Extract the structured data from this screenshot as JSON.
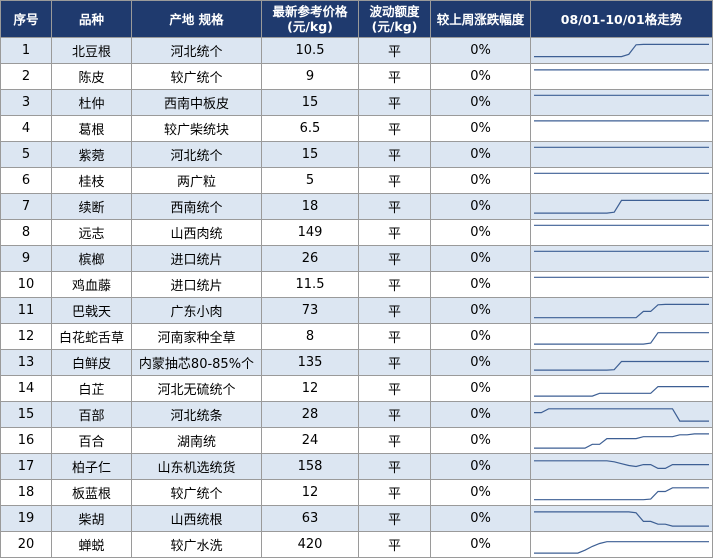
{
  "header": {
    "index": "序号",
    "variety": "品种",
    "origin_spec": "产地 规格",
    "price_line1": "最新参考价格",
    "price_line2": "(元/kg)",
    "change_line1": "波动额度",
    "change_line2": "(元/kg)",
    "weekly_pct": "较上周涨跌幅度",
    "trend": "08/01-10/01格走势"
  },
  "colors": {
    "header_bg": "#1f3a6e",
    "alt_row_bg": "#dce6f2",
    "trend_line": "#3d5f94"
  },
  "rows": [
    {
      "index": "1",
      "variety": "北豆根",
      "spec": "河北统个",
      "price": "10.5",
      "change": "平",
      "pct": "0%",
      "trend": [
        0.18,
        0.18,
        0.18,
        0.18,
        0.18,
        0.18,
        0.18,
        0.18,
        0.18,
        0.18,
        0.18,
        0.18,
        0.18,
        0.3,
        0.8,
        0.82,
        0.82,
        0.82,
        0.82,
        0.82,
        0.82,
        0.82,
        0.82,
        0.82,
        0.82
      ]
    },
    {
      "index": "2",
      "variety": "陈皮",
      "spec": "较广统个",
      "price": "9",
      "change": "平",
      "pct": "0%",
      "trend": [
        0.85,
        0.85,
        0.85,
        0.85,
        0.85,
        0.85,
        0.85,
        0.85,
        0.85,
        0.85,
        0.85,
        0.85,
        0.85,
        0.85,
        0.85,
        0.85,
        0.85,
        0.85,
        0.85,
        0.85,
        0.85,
        0.85,
        0.85,
        0.85,
        0.85
      ]
    },
    {
      "index": "3",
      "variety": "杜仲",
      "spec": "西南中板皮",
      "price": "15",
      "change": "平",
      "pct": "0%",
      "trend": [
        0.88,
        0.88,
        0.88,
        0.88,
        0.88,
        0.88,
        0.88,
        0.88,
        0.88,
        0.88,
        0.88,
        0.88,
        0.88,
        0.88,
        0.88,
        0.88,
        0.88,
        0.88,
        0.88,
        0.88,
        0.88,
        0.88,
        0.88,
        0.88,
        0.88
      ]
    },
    {
      "index": "4",
      "variety": "葛根",
      "spec": "较广柴统块",
      "price": "6.5",
      "change": "平",
      "pct": "0%",
      "trend": [
        0.9,
        0.9,
        0.9,
        0.9,
        0.9,
        0.9,
        0.9,
        0.9,
        0.9,
        0.9,
        0.9,
        0.9,
        0.9,
        0.9,
        0.9,
        0.9,
        0.9,
        0.9,
        0.9,
        0.9,
        0.9,
        0.9,
        0.9,
        0.9,
        0.9
      ]
    },
    {
      "index": "5",
      "variety": "紫菀",
      "spec": "河北统个",
      "price": "15",
      "change": "平",
      "pct": "0%",
      "trend": [
        0.88,
        0.88,
        0.88,
        0.88,
        0.88,
        0.88,
        0.88,
        0.88,
        0.88,
        0.88,
        0.88,
        0.88,
        0.88,
        0.88,
        0.88,
        0.88,
        0.88,
        0.88,
        0.88,
        0.88,
        0.88,
        0.88,
        0.88,
        0.88,
        0.88
      ]
    },
    {
      "index": "6",
      "variety": "桂枝",
      "spec": "两广粒",
      "price": "5",
      "change": "平",
      "pct": "0%",
      "trend": [
        0.88,
        0.88,
        0.88,
        0.88,
        0.88,
        0.88,
        0.88,
        0.88,
        0.88,
        0.88,
        0.88,
        0.88,
        0.88,
        0.88,
        0.88,
        0.88,
        0.88,
        0.88,
        0.88,
        0.88,
        0.88,
        0.88,
        0.88,
        0.88,
        0.88
      ]
    },
    {
      "index": "7",
      "variety": "续断",
      "spec": "西南统个",
      "price": "18",
      "change": "平",
      "pct": "0%",
      "trend": [
        0.15,
        0.15,
        0.15,
        0.15,
        0.15,
        0.15,
        0.15,
        0.15,
        0.15,
        0.15,
        0.15,
        0.2,
        0.82,
        0.82,
        0.82,
        0.82,
        0.82,
        0.82,
        0.82,
        0.82,
        0.82,
        0.82,
        0.82,
        0.82,
        0.82
      ]
    },
    {
      "index": "8",
      "variety": "远志",
      "spec": "山西肉统",
      "price": "149",
      "change": "平",
      "pct": "0%",
      "trend": [
        0.88,
        0.88,
        0.88,
        0.88,
        0.88,
        0.88,
        0.88,
        0.88,
        0.88,
        0.88,
        0.88,
        0.88,
        0.88,
        0.88,
        0.88,
        0.88,
        0.88,
        0.88,
        0.88,
        0.88,
        0.88,
        0.88,
        0.88,
        0.88,
        0.88
      ]
    },
    {
      "index": "9",
      "variety": "槟榔",
      "spec": "进口统片",
      "price": "26",
      "change": "平",
      "pct": "0%",
      "trend": [
        0.88,
        0.88,
        0.88,
        0.88,
        0.88,
        0.88,
        0.88,
        0.88,
        0.88,
        0.88,
        0.88,
        0.88,
        0.88,
        0.88,
        0.88,
        0.88,
        0.88,
        0.88,
        0.88,
        0.88,
        0.88,
        0.88,
        0.88,
        0.88,
        0.88
      ]
    },
    {
      "index": "10",
      "variety": "鸡血藤",
      "spec": "进口统片",
      "price": "11.5",
      "change": "平",
      "pct": "0%",
      "trend": [
        0.88,
        0.88,
        0.88,
        0.88,
        0.88,
        0.88,
        0.88,
        0.88,
        0.88,
        0.88,
        0.88,
        0.88,
        0.88,
        0.88,
        0.88,
        0.88,
        0.88,
        0.88,
        0.88,
        0.88,
        0.88,
        0.88,
        0.88,
        0.88,
        0.88
      ]
    },
    {
      "index": "11",
      "variety": "巴戟天",
      "spec": "广东小肉",
      "price": "73",
      "change": "平",
      "pct": "0%",
      "trend": [
        0.12,
        0.12,
        0.12,
        0.12,
        0.12,
        0.12,
        0.12,
        0.12,
        0.12,
        0.12,
        0.12,
        0.12,
        0.12,
        0.12,
        0.12,
        0.45,
        0.45,
        0.8,
        0.82,
        0.82,
        0.82,
        0.82,
        0.82,
        0.82,
        0.82
      ]
    },
    {
      "index": "12",
      "variety": "白花蛇舌草",
      "spec": "河南家种全草",
      "price": "8",
      "change": "平",
      "pct": "0%",
      "trend": [
        0.1,
        0.1,
        0.1,
        0.1,
        0.1,
        0.1,
        0.1,
        0.1,
        0.1,
        0.1,
        0.1,
        0.1,
        0.1,
        0.1,
        0.1,
        0.1,
        0.15,
        0.7,
        0.7,
        0.7,
        0.7,
        0.7,
        0.7,
        0.7,
        0.7
      ]
    },
    {
      "index": "13",
      "variety": "白鲜皮",
      "spec": "内蒙抽芯80-85%个",
      "price": "135",
      "change": "平",
      "pct": "0%",
      "trend": [
        0.1,
        0.1,
        0.1,
        0.1,
        0.1,
        0.1,
        0.1,
        0.1,
        0.1,
        0.1,
        0.1,
        0.12,
        0.55,
        0.55,
        0.55,
        0.55,
        0.55,
        0.55,
        0.55,
        0.55,
        0.55,
        0.55,
        0.55,
        0.55,
        0.55
      ]
    },
    {
      "index": "14",
      "variety": "白芷",
      "spec": "河北无硫统个",
      "price": "12",
      "change": "平",
      "pct": "0%",
      "trend": [
        0.1,
        0.1,
        0.1,
        0.1,
        0.1,
        0.1,
        0.1,
        0.1,
        0.1,
        0.25,
        0.25,
        0.25,
        0.25,
        0.25,
        0.25,
        0.25,
        0.25,
        0.6,
        0.6,
        0.6,
        0.6,
        0.6,
        0.6,
        0.6,
        0.6
      ]
    },
    {
      "index": "15",
      "variety": "百部",
      "spec": "河北统条",
      "price": "28",
      "change": "平",
      "pct": "0%",
      "trend": [
        0.6,
        0.6,
        0.8,
        0.8,
        0.8,
        0.8,
        0.8,
        0.8,
        0.8,
        0.8,
        0.8,
        0.8,
        0.8,
        0.8,
        0.8,
        0.8,
        0.8,
        0.8,
        0.8,
        0.8,
        0.15,
        0.15,
        0.15,
        0.15,
        0.15
      ]
    },
    {
      "index": "16",
      "variety": "百合",
      "spec": "湖南统",
      "price": "24",
      "change": "平",
      "pct": "0%",
      "trend": [
        0.1,
        0.1,
        0.1,
        0.1,
        0.1,
        0.1,
        0.1,
        0.1,
        0.3,
        0.3,
        0.6,
        0.6,
        0.6,
        0.6,
        0.6,
        0.7,
        0.7,
        0.7,
        0.7,
        0.7,
        0.8,
        0.8,
        0.85,
        0.85,
        0.85
      ]
    },
    {
      "index": "17",
      "variety": "柏子仁",
      "spec": "山东机选统货",
      "price": "158",
      "change": "平",
      "pct": "0%",
      "trend": [
        0.8,
        0.8,
        0.8,
        0.8,
        0.8,
        0.8,
        0.8,
        0.8,
        0.8,
        0.8,
        0.8,
        0.75,
        0.65,
        0.55,
        0.5,
        0.6,
        0.6,
        0.4,
        0.4,
        0.6,
        0.6,
        0.6,
        0.6,
        0.6,
        0.6
      ]
    },
    {
      "index": "18",
      "variety": "板蓝根",
      "spec": "较广统个",
      "price": "12",
      "change": "平",
      "pct": "0%",
      "trend": [
        0.12,
        0.12,
        0.12,
        0.12,
        0.12,
        0.12,
        0.12,
        0.12,
        0.12,
        0.12,
        0.12,
        0.12,
        0.12,
        0.12,
        0.12,
        0.12,
        0.15,
        0.55,
        0.55,
        0.75,
        0.75,
        0.75,
        0.75,
        0.75,
        0.75
      ]
    },
    {
      "index": "19",
      "variety": "柴胡",
      "spec": "山西统根",
      "price": "63",
      "change": "平",
      "pct": "0%",
      "trend": [
        0.85,
        0.85,
        0.85,
        0.85,
        0.85,
        0.85,
        0.85,
        0.85,
        0.85,
        0.85,
        0.85,
        0.85,
        0.85,
        0.85,
        0.8,
        0.35,
        0.35,
        0.2,
        0.2,
        0.1,
        0.1,
        0.1,
        0.1,
        0.1,
        0.1
      ]
    },
    {
      "index": "20",
      "variety": "蝉蜕",
      "spec": "较广水洗",
      "price": "420",
      "change": "平",
      "pct": "0%",
      "trend": [
        0.05,
        0.05,
        0.05,
        0.05,
        0.05,
        0.05,
        0.05,
        0.2,
        0.4,
        0.55,
        0.65,
        0.65,
        0.65,
        0.65,
        0.65,
        0.65,
        0.65,
        0.65,
        0.65,
        0.65,
        0.65,
        0.65,
        0.65,
        0.65,
        0.65
      ]
    }
  ]
}
